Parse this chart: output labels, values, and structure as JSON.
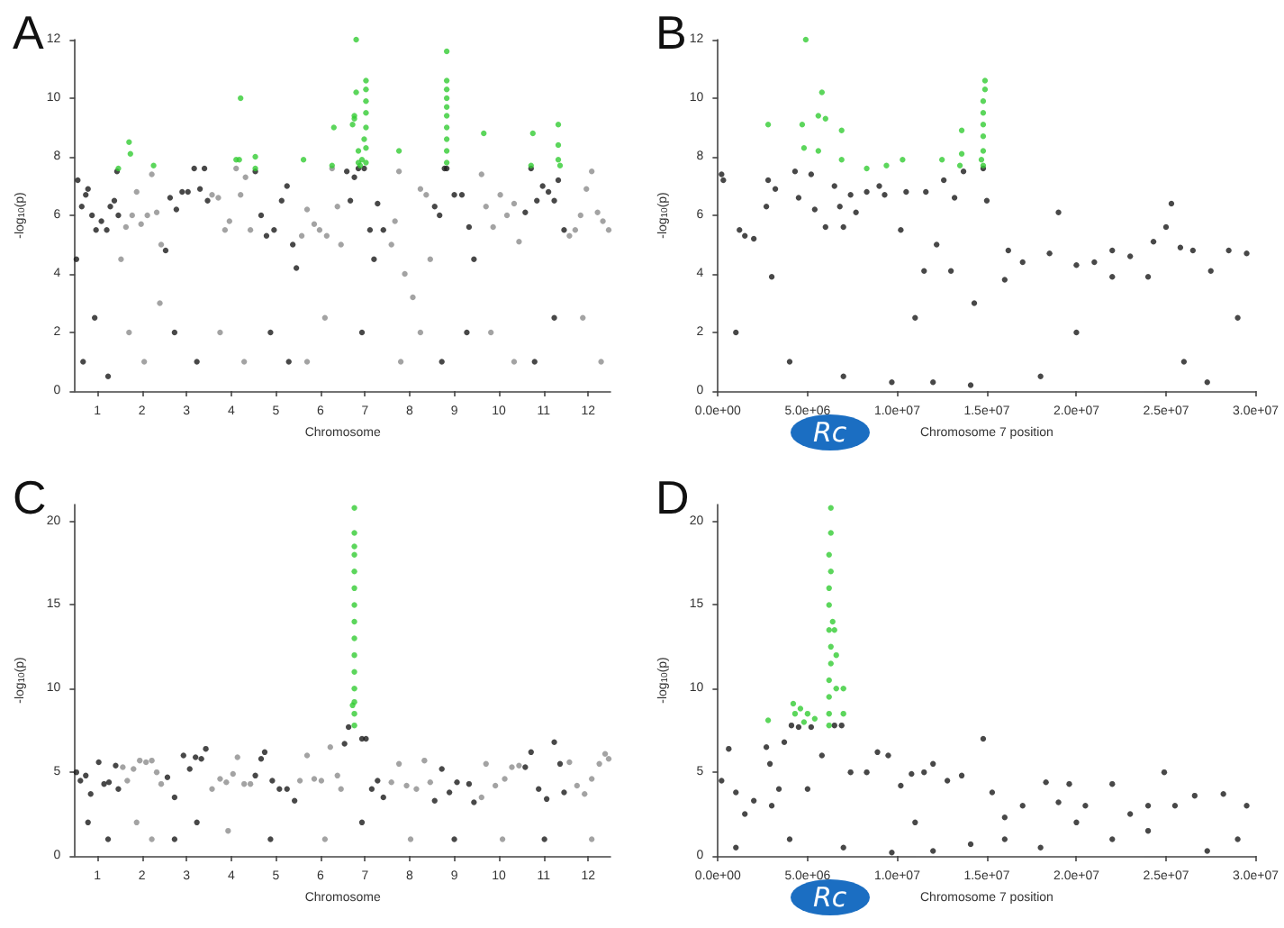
{
  "chart_data": [
    {
      "type": "scatter",
      "title": "A",
      "xlabel": "Chromosome",
      "ylabel": "-log$_{10}$(p)",
      "marker": "circle",
      "xlim": [
        0.5,
        12.5
      ],
      "xticks": [
        1,
        2,
        3,
        4,
        5,
        6,
        7,
        8,
        9,
        10,
        11,
        12
      ],
      "ylim": [
        0,
        12
      ],
      "yticks": [
        0,
        2,
        4,
        6,
        8,
        10,
        12
      ],
      "series": [
        {
          "color": "#1a1a1a",
          "x": [
            0.53,
            0.56,
            0.65,
            0.74,
            0.79,
            0.88,
            0.97,
            1.09,
            1.21,
            1.29,
            1.38,
            1.44,
            1.47,
            0.68,
            0.94,
            1.24,
            2.53,
            2.63,
            2.77,
            2.9,
            3.03,
            3.17,
            3.3,
            3.4,
            3.47,
            2.73,
            3.23,
            4.54,
            4.67,
            4.79,
            4.96,
            5.13,
            5.25,
            5.38,
            5.46,
            4.88,
            5.29,
            6.59,
            6.67,
            6.76,
            6.85,
            6.98,
            7.11,
            7.2,
            7.28,
            7.41,
            6.93,
            8.56,
            8.67,
            8.78,
            8.83,
            9,
            9.17,
            9.33,
            9.44,
            8.72,
            9.28,
            10.59,
            10.72,
            10.85,
            10.98,
            11.11,
            11.24,
            11.33,
            11.46,
            10.8,
            11.24
          ],
          "values": [
            4.5,
            7.2,
            6.3,
            6.7,
            6.9,
            6,
            5.5,
            5.8,
            5.5,
            6.3,
            6.5,
            7.5,
            6,
            1,
            2.5,
            0.5,
            4.8,
            6.6,
            6.2,
            6.8,
            6.8,
            7.6,
            6.9,
            7.6,
            6.5,
            2,
            1,
            7.5,
            6,
            5.3,
            5.5,
            6.5,
            7,
            5,
            4.2,
            2,
            1,
            7.5,
            6.5,
            7.3,
            7.6,
            7.6,
            5.5,
            4.5,
            6.4,
            5.5,
            2,
            6.3,
            6,
            7.6,
            7.6,
            6.7,
            6.7,
            5.6,
            4.5,
            1,
            2,
            6.1,
            7.6,
            6.5,
            7,
            6.8,
            6.5,
            7.2,
            5.5,
            1,
            2.5
          ]
        },
        {
          "color": "#8c8c8c",
          "x": [
            1.53,
            1.64,
            1.78,
            1.88,
            1.98,
            2.12,
            2.22,
            2.33,
            2.43,
            1.71,
            2.05,
            2.4,
            3.57,
            3.71,
            3.86,
            3.96,
            4.11,
            4.21,
            4.32,
            4.43,
            3.75,
            4.29,
            5.58,
            5.7,
            5.86,
            5.98,
            6.14,
            6.26,
            6.38,
            6.46,
            5.7,
            6.1,
            7.59,
            7.67,
            7.76,
            7.89,
            8.07,
            8.24,
            8.37,
            8.46,
            7.8,
            8.24,
            9.61,
            9.71,
            9.87,
            10.03,
            10.18,
            10.34,
            10.45,
            9.82,
            10.34,
            11.58,
            11.71,
            11.83,
            11.96,
            12.08,
            12.21,
            12.33,
            12.46,
            11.88,
            12.29
          ],
          "values": [
            4.5,
            5.6,
            6,
            6.8,
            5.7,
            6,
            7.4,
            6.1,
            5,
            2,
            1,
            3,
            6.7,
            6.6,
            5.5,
            5.8,
            7.6,
            6.7,
            7.3,
            5.5,
            2,
            1,
            5.3,
            6.2,
            5.7,
            5.5,
            5.3,
            7.6,
            6.3,
            5,
            1,
            2.5,
            5,
            5.8,
            7.5,
            4,
            3.2,
            6.9,
            6.7,
            4.5,
            1,
            2,
            7.4,
            6.3,
            5.6,
            6.7,
            6,
            6.4,
            5.1,
            2,
            1,
            5.3,
            5.5,
            6,
            6.9,
            7.5,
            6.1,
            5.8,
            5.5,
            2.5,
            1
          ]
        },
        {
          "color": "#33cc33",
          "x": [
            1.47,
            1.71,
            1.74,
            2.26,
            4.11,
            4.18,
            4.21,
            4.54,
            4.54,
            5.62,
            6.26,
            6.3,
            6.72,
            6.76,
            6.76,
            6.8,
            6.8,
            6.85,
            6.85,
            6.89,
            6.93,
            6.98,
            7.02,
            7.02,
            7.02,
            7.02,
            7.02,
            7.02,
            7.02,
            7.76,
            8.83,
            8.83,
            8.83,
            8.83,
            8.83,
            8.83,
            8.83,
            8.83,
            8.83,
            8.83,
            9.66,
            10.72,
            10.76,
            11.33,
            11.33,
            11.33,
            11.37
          ],
          "values": [
            7.6,
            8.5,
            8.1,
            7.7,
            7.9,
            7.9,
            10,
            8,
            7.6,
            7.9,
            7.7,
            9,
            9.1,
            9.3,
            9.4,
            12,
            10.2,
            8.2,
            7.8,
            7.7,
            7.9,
            8.6,
            7.8,
            8.3,
            9,
            9.5,
            9.9,
            10.3,
            10.6,
            8.2,
            7.8,
            8.2,
            8.6,
            9,
            9.4,
            9.7,
            10,
            10.3,
            10.6,
            11.6,
            8.8,
            7.7,
            8.8,
            9.1,
            8.4,
            7.9,
            7.7
          ]
        }
      ]
    },
    {
      "type": "scatter",
      "title": "B",
      "xlabel": "Chromosome 7 position",
      "ylabel": "-log$_{10}$(p)",
      "marker": "circle",
      "xlim": [
        0,
        30000000
      ],
      "xticks": [
        {
          "value": 0,
          "label": "0.0e+00"
        },
        {
          "value": 5000000,
          "label": "5.0e+06"
        },
        {
          "value": 10000000,
          "label": "1.0e+07"
        },
        {
          "value": 15000000,
          "label": "1.5e+07"
        },
        {
          "value": 20000000,
          "label": "2.0e+07"
        },
        {
          "value": 25000000,
          "label": "2.5e+07"
        },
        {
          "value": 30000000,
          "label": "3.0e+07"
        }
      ],
      "ylim": [
        0,
        12
      ],
      "yticks": [
        0,
        2,
        4,
        6,
        8,
        10,
        12
      ],
      "annotations": [
        "Rc"
      ],
      "series": [
        {
          "color": "#1a1a1a",
          "x": [
            200000,
            300000,
            1200000,
            1500000,
            2000000,
            2700000,
            2800000,
            3200000,
            4300000,
            4500000,
            5200000,
            5400000,
            6000000,
            6500000,
            6800000,
            7000000,
            7400000,
            7700000,
            8300000,
            9000000,
            9300000,
            10200000,
            10500000,
            11600000,
            12200000,
            12600000,
            13200000,
            13700000,
            14300000,
            14800000,
            15000000,
            16200000,
            17000000,
            18500000,
            19000000,
            20000000,
            21000000,
            22000000,
            23000000,
            24300000,
            25000000,
            25300000,
            25800000,
            26500000,
            27500000,
            28500000,
            29500000,
            1000000,
            4000000,
            7000000,
            9700000,
            11000000,
            12000000,
            14100000,
            16000000,
            18000000,
            20000000,
            22000000,
            24000000,
            26000000,
            27300000,
            29000000,
            3000000,
            11500000,
            13000000
          ],
          "values": [
            7.4,
            7.2,
            5.5,
            5.3,
            5.2,
            6.3,
            7.2,
            6.9,
            7.5,
            6.6,
            7.4,
            6.2,
            5.6,
            7,
            6.3,
            5.6,
            6.7,
            6.1,
            6.8,
            7,
            6.7,
            5.5,
            6.8,
            6.8,
            5,
            7.2,
            6.6,
            7.5,
            3,
            7.6,
            6.5,
            4.8,
            4.4,
            4.7,
            6.1,
            4.3,
            4.4,
            4.8,
            4.6,
            5.1,
            5.6,
            6.4,
            4.9,
            4.8,
            4.1,
            4.8,
            4.7,
            2,
            1,
            0.5,
            0.3,
            2.5,
            0.3,
            0.2,
            3.8,
            0.5,
            2,
            3.9,
            3.9,
            1,
            0.3,
            2.5,
            3.9,
            4.1,
            4.1
          ]
        },
        {
          "color": "#33cc33",
          "x": [
            2800000,
            4700000,
            4800000,
            4900000,
            5600000,
            5600000,
            5800000,
            6000000,
            6900000,
            6900000,
            8300000,
            9400000,
            10300000,
            12500000,
            13600000,
            13600000,
            13500000,
            14700000,
            14800000,
            14800000,
            14800000,
            14800000,
            14800000,
            14800000,
            14900000,
            14900000
          ],
          "values": [
            9.1,
            9.1,
            8.3,
            12,
            9.4,
            8.2,
            10.2,
            9.3,
            8.9,
            7.9,
            7.6,
            7.7,
            7.9,
            7.9,
            8.9,
            8.1,
            7.7,
            7.9,
            7.7,
            8.2,
            8.7,
            9.1,
            9.5,
            9.9,
            10.3,
            10.6
          ]
        }
      ]
    },
    {
      "type": "scatter",
      "title": "C",
      "xlabel": "Chromosome",
      "ylabel": "-log$_{10}$(p)",
      "marker": "circle",
      "xlim": [
        0.5,
        12.5
      ],
      "xticks": [
        1,
        2,
        3,
        4,
        5,
        6,
        7,
        8,
        9,
        10,
        11,
        12
      ],
      "ylim": [
        0,
        21
      ],
      "yticks": [
        0,
        5,
        10,
        15,
        20
      ],
      "series": [
        {
          "color": "#1a1a1a",
          "x": [
            0.53,
            0.62,
            0.74,
            0.85,
            1.03,
            1.15,
            1.26,
            1.41,
            1.47,
            0.79,
            1.24,
            2.57,
            2.73,
            2.93,
            3.07,
            3.2,
            3.33,
            3.43,
            2.73,
            3.23,
            4.54,
            4.67,
            4.75,
            4.92,
            5.08,
            5.25,
            5.42,
            4.88,
            6.54,
            6.63,
            6.93,
            7.02,
            7.15,
            7.28,
            7.41,
            6.93,
            8.56,
            8.72,
            8.89,
            9.06,
            9.33,
            9.44,
            9,
            10.59,
            10.72,
            10.89,
            11.07,
            11.24,
            11.37,
            11.46,
            11.02
          ],
          "values": [
            5,
            4.5,
            4.8,
            3.7,
            5.6,
            4.3,
            4.4,
            5.4,
            4,
            2,
            1,
            4.7,
            3.5,
            6,
            5.2,
            5.9,
            5.8,
            6.4,
            1,
            2,
            4.8,
            5.8,
            6.2,
            4.5,
            4,
            4,
            3.3,
            1,
            6.7,
            7.7,
            7,
            7,
            4,
            4.5,
            3.5,
            2,
            3.3,
            5.2,
            3.8,
            4.4,
            4.3,
            3.2,
            1,
            5.3,
            6.2,
            4,
            3.4,
            6.8,
            5.5,
            3.8,
            1
          ]
        },
        {
          "color": "#8c8c8c",
          "x": [
            1.57,
            1.67,
            1.81,
            1.95,
            2.09,
            2.22,
            2.33,
            2.43,
            1.88,
            2.22,
            3.57,
            3.75,
            3.89,
            4.04,
            4.14,
            4.29,
            4.43,
            3.93,
            5.54,
            5.7,
            5.86,
            6.02,
            6.22,
            6.38,
            6.46,
            6.1,
            7.59,
            7.76,
            7.93,
            8.15,
            8.33,
            8.46,
            8.02,
            9.61,
            9.71,
            9.92,
            10.13,
            10.29,
            10.45,
            10.08,
            11.58,
            11.75,
            11.92,
            12.08,
            12.25,
            12.38,
            12.46,
            12.08
          ],
          "values": [
            5.3,
            4.5,
            5.2,
            5.7,
            5.6,
            5.7,
            5,
            4.3,
            2,
            1,
            4,
            4.6,
            4.4,
            4.9,
            5.9,
            4.3,
            4.3,
            1.5,
            4.5,
            6,
            4.6,
            4.5,
            6.5,
            4.8,
            4,
            1,
            4.4,
            5.5,
            4.2,
            4,
            5.7,
            4.4,
            1,
            3.5,
            5.5,
            4.2,
            4.6,
            5.3,
            5.4,
            1,
            5.6,
            4.2,
            3.7,
            4.6,
            5.5,
            6.1,
            5.8,
            1
          ]
        },
        {
          "color": "#33cc33",
          "x": [
            6.72,
            6.76,
            6.76,
            6.76,
            6.76,
            6.76,
            6.76,
            6.76,
            6.76,
            6.76,
            6.76,
            6.76,
            6.76,
            6.76,
            6.76,
            6.76
          ],
          "values": [
            9,
            7.8,
            8.5,
            9.2,
            10,
            11,
            12,
            13,
            14,
            15,
            16,
            17,
            18,
            18.5,
            19.3,
            20.8
          ]
        }
      ]
    },
    {
      "type": "scatter",
      "title": "D",
      "xlabel": "Chromosome 7 position",
      "ylabel": "-log$_{10}$(p)",
      "marker": "circle",
      "xlim": [
        0,
        30000000
      ],
      "xticks": [
        {
          "value": 0,
          "label": "0.0e+00"
        },
        {
          "value": 5000000,
          "label": "5.0e+06"
        },
        {
          "value": 10000000,
          "label": "1.0e+07"
        },
        {
          "value": 15000000,
          "label": "1.5e+07"
        },
        {
          "value": 20000000,
          "label": "2.0e+07"
        },
        {
          "value": 25000000,
          "label": "2.5e+07"
        },
        {
          "value": 30000000,
          "label": "3.0e+07"
        }
      ],
      "ylim": [
        0,
        21
      ],
      "yticks": [
        0,
        5,
        10,
        15,
        20
      ],
      "annotations": [
        "Rc"
      ],
      "series": [
        {
          "color": "#1a1a1a",
          "x": [
            200000,
            600000,
            1000000,
            1500000,
            2000000,
            2700000,
            2900000,
            3400000,
            3700000,
            4100000,
            4500000,
            5200000,
            5800000,
            6500000,
            6900000,
            7400000,
            8300000,
            8900000,
            9500000,
            10200000,
            10800000,
            11500000,
            12000000,
            12800000,
            13600000,
            14800000,
            15300000,
            16000000,
            17000000,
            18300000,
            19000000,
            19600000,
            20500000,
            22000000,
            23000000,
            24000000,
            24900000,
            25500000,
            26600000,
            28200000,
            29500000,
            1000000,
            4000000,
            7000000,
            9700000,
            11000000,
            12000000,
            14100000,
            16000000,
            18000000,
            20000000,
            22000000,
            24000000,
            27300000,
            29000000,
            5000000,
            3000000
          ],
          "values": [
            4.5,
            6.4,
            3.8,
            2.5,
            3.3,
            6.5,
            5.5,
            4,
            6.8,
            7.8,
            7.7,
            7.7,
            6,
            7.8,
            7.8,
            5,
            5,
            6.2,
            6,
            4.2,
            4.9,
            5,
            5.5,
            4.5,
            4.8,
            7,
            3.8,
            2.3,
            3,
            4.4,
            3.2,
            4.3,
            3,
            4.3,
            2.5,
            3,
            5,
            3,
            3.6,
            3.7,
            3,
            0.5,
            1,
            0.5,
            0.2,
            2,
            0.3,
            0.7,
            1,
            0.5,
            2,
            1,
            1.5,
            0.3,
            1,
            4,
            3
          ]
        },
        {
          "color": "#33cc33",
          "x": [
            2800000,
            4200000,
            4300000,
            4600000,
            5000000,
            5400000,
            4800000,
            6200000,
            6200000,
            6200000,
            6200000,
            6300000,
            6300000,
            6200000,
            6400000,
            6200000,
            6200000,
            6300000,
            6200000,
            6300000,
            6300000,
            6600000,
            6600000,
            7000000,
            7000000,
            6500000
          ],
          "values": [
            8.1,
            9.1,
            8.5,
            8.8,
            8.5,
            8.2,
            8,
            7.8,
            8.5,
            9.5,
            10.5,
            11.5,
            12.5,
            13.5,
            14,
            15,
            16,
            17,
            18,
            19.3,
            20.8,
            12,
            10,
            10,
            8.5,
            13.5
          ]
        }
      ]
    }
  ]
}
